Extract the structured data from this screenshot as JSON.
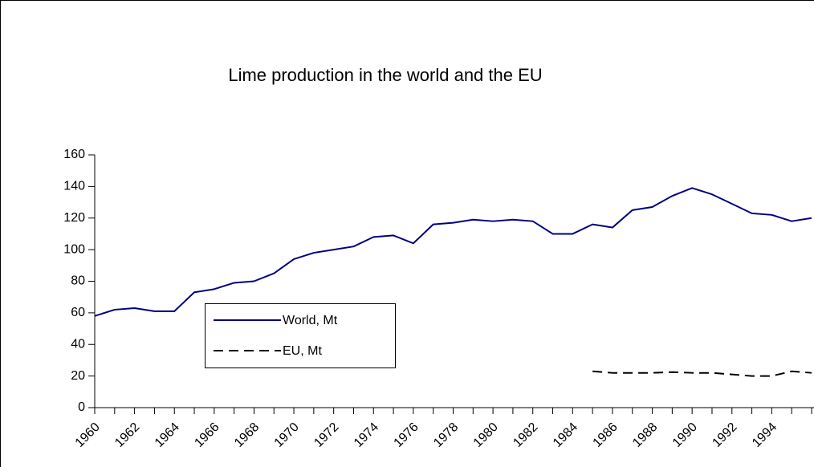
{
  "chart_data": {
    "type": "line",
    "title": "Lime production in the world and the EU",
    "x": [
      1960,
      1961,
      1962,
      1963,
      1964,
      1965,
      1966,
      1967,
      1968,
      1969,
      1970,
      1971,
      1972,
      1973,
      1974,
      1975,
      1976,
      1977,
      1978,
      1979,
      1980,
      1981,
      1982,
      1983,
      1984,
      1985,
      1986,
      1987,
      1988,
      1989,
      1990,
      1991,
      1992,
      1993,
      1994,
      1995,
      1996
    ],
    "series": [
      {
        "name": "World, Mt",
        "color": "#000080",
        "dash": false,
        "values": [
          58,
          62,
          63,
          61,
          61,
          73,
          75,
          79,
          80,
          85,
          94,
          98,
          100,
          102,
          108,
          109,
          104,
          116,
          117,
          119,
          118,
          119,
          118,
          110,
          110,
          116,
          114,
          125,
          127,
          134,
          139,
          135,
          129,
          123,
          122,
          118,
          120
        ]
      },
      {
        "name": "EU, Mt",
        "color": "#000000",
        "dash": true,
        "values": [
          null,
          null,
          null,
          null,
          null,
          null,
          null,
          null,
          null,
          null,
          null,
          null,
          null,
          null,
          null,
          null,
          null,
          null,
          null,
          null,
          null,
          null,
          null,
          null,
          null,
          23,
          22,
          22,
          22,
          22.5,
          22,
          22,
          21,
          20,
          20,
          23,
          22
        ]
      }
    ],
    "xlim": [
      1960,
      1996
    ],
    "xticks": [
      1960,
      1962,
      1964,
      1966,
      1968,
      1970,
      1972,
      1974,
      1976,
      1978,
      1980,
      1982,
      1984,
      1986,
      1988,
      1990,
      1992,
      1994
    ],
    "ylim": [
      0,
      160
    ],
    "yticks": [
      0,
      20,
      40,
      60,
      80,
      100,
      120,
      140,
      160
    ],
    "grid": false
  }
}
